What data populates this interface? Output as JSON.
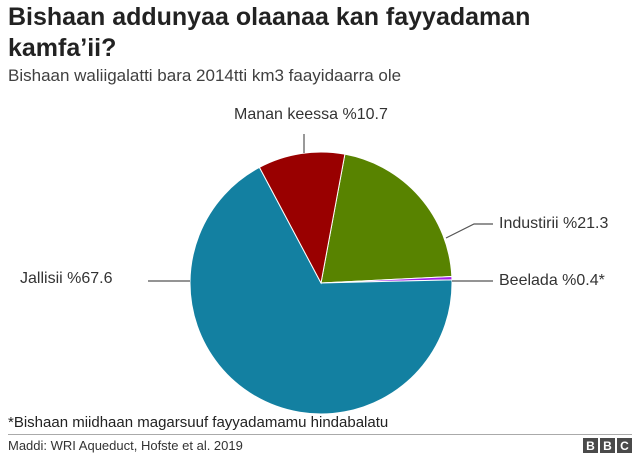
{
  "chart_data": {
    "type": "pie",
    "title": "Bishaan addunyaa olaanaa kan fayyadaman kamfa’ii?",
    "subtitle": "Bishaan waliigalatti bara 2014tti km3 faayidaarra ole",
    "slices": [
      {
        "name": "Manan keessa",
        "value": 10.7,
        "label": "Manan keessa %10.7",
        "color": "#990000"
      },
      {
        "name": "Industirii",
        "value": 21.3,
        "label": "Industirii %21.3",
        "color": "#588300"
      },
      {
        "name": "Beelada",
        "value": 0.4,
        "label": "Beelada %0.4*",
        "color": "#A020E8"
      },
      {
        "name": "Jallisii",
        "value": 67.6,
        "label": "Jallisii %67.6",
        "color": "#1380A1"
      }
    ],
    "start_slice": "Industirii",
    "note": "*Bishaan miidhaan magarsuuf fayyadamamu hindabalatu",
    "source": "Maddi: WRI Aqueduct, Hofste et al. 2019",
    "logo": [
      "B",
      "B",
      "C"
    ]
  }
}
